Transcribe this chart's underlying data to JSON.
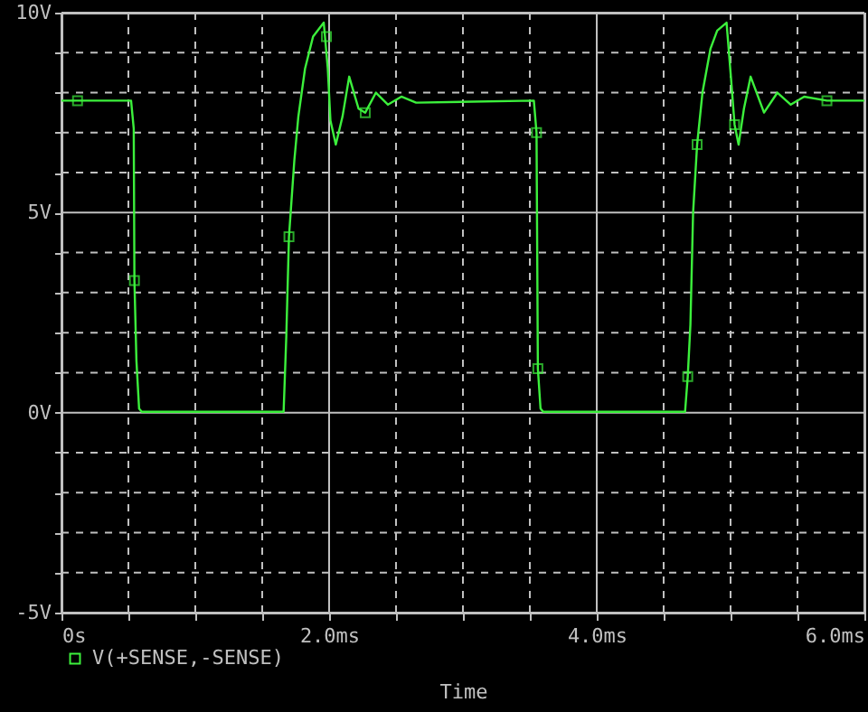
{
  "chart_data": {
    "type": "line",
    "xlabel": "Time",
    "xlim": [
      0,
      6
    ],
    "ylim": [
      -5,
      10
    ],
    "xticks": [
      {
        "value": 0,
        "label": "0s"
      },
      {
        "value": 0.5,
        "label": null
      },
      {
        "value": 1,
        "label": null
      },
      {
        "value": 1.5,
        "label": null
      },
      {
        "value": 2,
        "label": "2.0ms"
      },
      {
        "value": 2.5,
        "label": null
      },
      {
        "value": 3,
        "label": null
      },
      {
        "value": 3.5,
        "label": null
      },
      {
        "value": 4,
        "label": "4.0ms"
      },
      {
        "value": 4.5,
        "label": null
      },
      {
        "value": 5,
        "label": null
      },
      {
        "value": 5.5,
        "label": null
      },
      {
        "value": 6,
        "label": "6.0ms"
      }
    ],
    "yticks": [
      {
        "value": -5,
        "label": "-5V"
      },
      {
        "value": -4,
        "label": null
      },
      {
        "value": -3,
        "label": null
      },
      {
        "value": -2,
        "label": null
      },
      {
        "value": -1,
        "label": null
      },
      {
        "value": 0,
        "label": "0V"
      },
      {
        "value": 1,
        "label": null
      },
      {
        "value": 2,
        "label": null
      },
      {
        "value": 3,
        "label": null
      },
      {
        "value": 4,
        "label": null
      },
      {
        "value": 5,
        "label": "5V"
      },
      {
        "value": 6,
        "label": null
      },
      {
        "value": 7,
        "label": null
      },
      {
        "value": 8,
        "label": null
      },
      {
        "value": 9,
        "label": null
      },
      {
        "value": 10,
        "label": "10V"
      }
    ],
    "grid": true,
    "legend": "bottom left",
    "series": [
      {
        "name": "V(+SENSE,-SENSE)",
        "color": "#3cf03c",
        "marker": "none",
        "x": [
          0,
          0.52,
          0.54,
          0.545,
          0.56,
          0.58,
          0.6,
          1.66,
          1.68,
          1.7,
          1.74,
          1.77,
          1.82,
          1.88,
          1.96,
          1.99,
          2.01,
          2.05,
          2.1,
          2.15,
          2.22,
          2.27,
          2.35,
          2.44,
          2.54,
          2.65,
          3.53,
          3.55,
          3.56,
          3.58,
          3.6,
          4.66,
          4.68,
          4.7,
          4.72,
          4.75,
          4.79,
          4.85,
          4.9,
          4.97,
          5.0,
          5.03,
          5.06,
          5.1,
          5.15,
          5.25,
          5.35,
          5.45,
          5.55,
          5.72,
          6.0
        ],
        "values": [
          7.8,
          7.8,
          7.1,
          3.3,
          1.3,
          0.1,
          0.02,
          0.02,
          1.9,
          4.4,
          6.3,
          7.4,
          8.6,
          9.4,
          9.75,
          8.6,
          7.3,
          6.7,
          7.4,
          8.4,
          7.6,
          7.5,
          8.0,
          7.7,
          7.9,
          7.75,
          7.8,
          7.0,
          1.1,
          0.1,
          0.02,
          0.02,
          0.9,
          2.2,
          5.0,
          6.7,
          8.0,
          9.1,
          9.55,
          9.75,
          8.5,
          7.2,
          6.7,
          7.6,
          8.4,
          7.5,
          8.0,
          7.7,
          7.9,
          7.8,
          7.8
        ]
      },
      {
        "type": "scatter",
        "color": "#3cf03c",
        "marker": "square",
        "x": [
          0.12,
          0.545,
          1.7,
          1.98,
          2.27,
          3.55,
          3.56,
          4.68,
          4.75,
          5.03,
          5.72
        ],
        "values": [
          7.8,
          3.3,
          4.4,
          9.4,
          7.5,
          7.0,
          1.1,
          0.9,
          6.7,
          7.2,
          7.8
        ]
      }
    ]
  }
}
